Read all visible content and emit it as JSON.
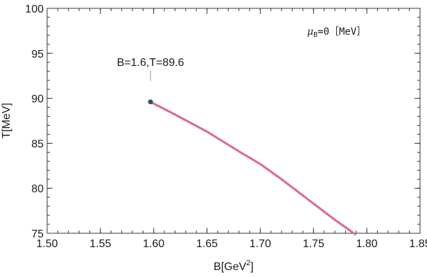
{
  "chart_data": {
    "type": "line",
    "title": "",
    "xlabel": "B[GeV",
    "xlabel_sup": "2",
    "xlabel_close": "]",
    "ylabel": "T[MeV]",
    "xlim": [
      1.5,
      1.85
    ],
    "ylim": [
      75,
      100
    ],
    "x_ticks": [
      1.5,
      1.55,
      1.6,
      1.65,
      1.7,
      1.75,
      1.8,
      1.85
    ],
    "x_tick_labels": [
      "1.50",
      "1.55",
      "1.60",
      "1.65",
      "1.70",
      "1.75",
      "1.80",
      "1.85"
    ],
    "y_ticks": [
      75,
      80,
      85,
      90,
      95,
      100
    ],
    "y_tick_labels": [
      "75",
      "80",
      "85",
      "90",
      "95",
      "100"
    ],
    "x_minor_step": 0.01,
    "y_minor_step": 1,
    "grid": false,
    "series": [
      {
        "color": "#d9708a",
        "x": [
          1.597,
          1.62,
          1.65,
          1.68,
          1.7,
          1.72,
          1.75,
          1.77,
          1.789
        ],
        "y": [
          89.6,
          88.2,
          86.3,
          84.1,
          82.7,
          81.0,
          78.3,
          76.5,
          74.9
        ]
      }
    ],
    "marker": {
      "x": 1.597,
      "y": 89.6,
      "color": "#3b4a6b"
    },
    "annotation": {
      "text": "B=1.6,T=89.6",
      "x": 1.597,
      "y": 89.6
    },
    "inset_label": {
      "symbol": "μ",
      "subscript": "B",
      "text": "=0［MeV］"
    }
  }
}
